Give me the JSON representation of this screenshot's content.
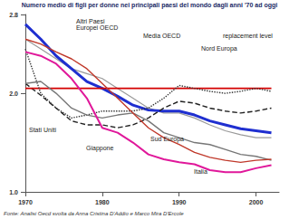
{
  "chart_data": {
    "type": "line",
    "title": "Numero medio di figli per donne nei principali paesi del mondo dagli anni '70 ad oggi",
    "source": "Fonte: Analisi Oecd svolta da Anna Cristina D'Addio e Marco Mira D'Ercole",
    "x": [
      1970,
      1972,
      1974,
      1976,
      1978,
      1980,
      1982,
      1984,
      1986,
      1988,
      1990,
      1992,
      1994,
      1996,
      1998,
      2000,
      2002
    ],
    "xlim": [
      1970,
      2003
    ],
    "xticks": [
      1970,
      1980,
      1990,
      2000
    ],
    "ylim": [
      1.0,
      2.8
    ],
    "yticks": [
      {
        "value": 1.0,
        "label": "1.0"
      },
      {
        "value": 2.0,
        "label": "2.0"
      },
      {
        "value": 2.8,
        "label": "2.8"
      }
    ],
    "grid": false,
    "series": [
      {
        "name": "Altri Paesi Europei OECD",
        "color": "#9a9a9a",
        "line_style": "solid",
        "values": [
          2.55,
          2.45,
          2.35,
          2.25,
          2.2,
          2.15,
          2.05,
          1.95,
          1.85,
          1.8,
          1.8,
          1.75,
          1.68,
          1.62,
          1.58,
          1.55,
          1.55
        ]
      },
      {
        "name": "Media OECD",
        "color": "#1f2fd0",
        "line_style": "solid",
        "values": [
          2.7,
          2.55,
          2.38,
          2.25,
          2.12,
          2.05,
          1.97,
          1.88,
          1.83,
          1.82,
          1.82,
          1.78,
          1.72,
          1.68,
          1.64,
          1.62,
          1.6
        ]
      },
      {
        "name": "Nord Europa",
        "color": "#222222",
        "line_style": "dashed",
        "values": [
          2.1,
          1.98,
          1.85,
          1.72,
          1.68,
          1.68,
          1.65,
          1.68,
          1.75,
          1.85,
          1.92,
          1.9,
          1.85,
          1.82,
          1.8,
          1.82,
          1.85
        ]
      },
      {
        "name": "replacement level",
        "color": "#d40000",
        "line_style": "solid",
        "values": [
          2.05,
          2.05,
          2.05,
          2.05,
          2.05,
          2.05,
          2.05,
          2.05,
          2.05,
          2.05,
          2.05,
          2.05,
          2.05,
          2.05,
          2.05,
          2.05,
          2.05
        ]
      },
      {
        "name": "Stati Uniti",
        "color": "#333333",
        "line_style": "dotted",
        "values": [
          2.45,
          2.0,
          1.85,
          1.75,
          1.78,
          1.82,
          1.82,
          1.82,
          1.85,
          1.95,
          2.08,
          2.05,
          2.02,
          2.0,
          2.02,
          2.05,
          2.02
        ]
      },
      {
        "name": "Giappone",
        "color": "#777777",
        "line_style": "solid",
        "values": [
          2.1,
          2.12,
          2.0,
          1.85,
          1.78,
          1.75,
          1.78,
          1.8,
          1.72,
          1.6,
          1.55,
          1.5,
          1.48,
          1.43,
          1.38,
          1.36,
          1.32
        ]
      },
      {
        "name": "Sud Europa",
        "color": "#c0392b",
        "line_style": "solid",
        "values": [
          2.55,
          2.5,
          2.42,
          2.35,
          2.25,
          2.1,
          1.95,
          1.8,
          1.65,
          1.55,
          1.48,
          1.4,
          1.35,
          1.32,
          1.3,
          1.32,
          1.33
        ]
      },
      {
        "name": "Italia",
        "color": "#e0189a",
        "line_style": "solid",
        "values": [
          2.42,
          2.38,
          2.3,
          2.15,
          1.95,
          1.65,
          1.6,
          1.5,
          1.38,
          1.33,
          1.3,
          1.28,
          1.22,
          1.2,
          1.2,
          1.24,
          1.27
        ]
      }
    ]
  }
}
